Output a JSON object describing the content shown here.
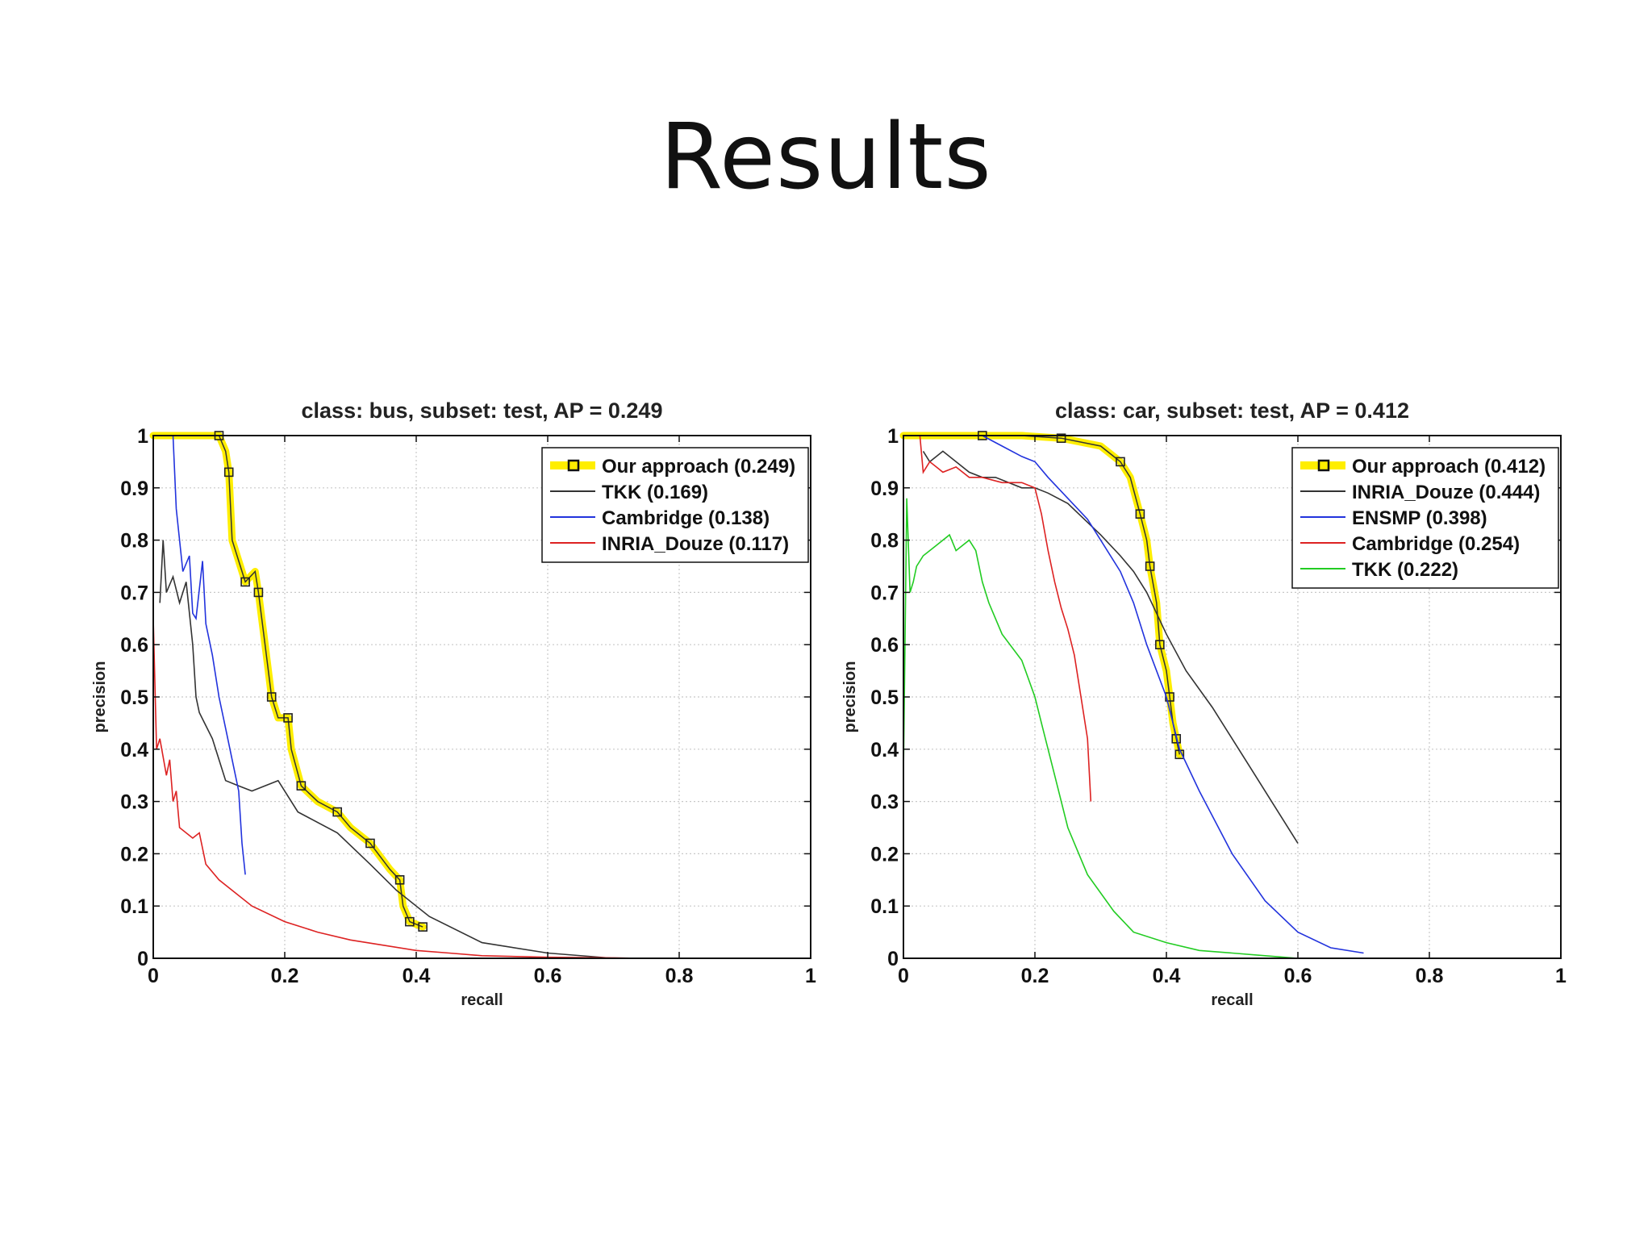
{
  "slide": {
    "title": "Results"
  },
  "chart_data": [
    {
      "type": "line",
      "title": "class: bus, subset: test, AP = 0.249",
      "xlabel": "recall",
      "ylabel": "precision",
      "xlim": [
        0,
        1
      ],
      "ylim": [
        0,
        1
      ],
      "xticks": [
        "0",
        "0.2",
        "0.4",
        "0.6",
        "0.8",
        "1"
      ],
      "yticks": [
        "0",
        "0.1",
        "0.2",
        "0.3",
        "0.4",
        "0.5",
        "0.6",
        "0.7",
        "0.8",
        "0.9",
        "1"
      ],
      "grid": true,
      "legend_position": "top-right",
      "series": [
        {
          "name": "Our approach (0.249)",
          "color": "#ffee00",
          "highlight": true,
          "markers": true,
          "x": [
            0,
            0.06,
            0.1,
            0.11,
            0.115,
            0.12,
            0.14,
            0.155,
            0.16,
            0.17,
            0.18,
            0.19,
            0.205,
            0.21,
            0.225,
            0.25,
            0.28,
            0.3,
            0.33,
            0.36,
            0.375,
            0.38,
            0.39,
            0.41
          ],
          "y": [
            1,
            1,
            1,
            0.97,
            0.93,
            0.8,
            0.72,
            0.74,
            0.7,
            0.6,
            0.5,
            0.46,
            0.46,
            0.4,
            0.33,
            0.3,
            0.28,
            0.25,
            0.22,
            0.17,
            0.15,
            0.1,
            0.07,
            0.06
          ]
        },
        {
          "name": "TKK (0.169)",
          "color": "#333333",
          "x": [
            0.01,
            0.015,
            0.02,
            0.03,
            0.04,
            0.05,
            0.06,
            0.065,
            0.07,
            0.09,
            0.1,
            0.11,
            0.13,
            0.15,
            0.19,
            0.22,
            0.28,
            0.33,
            0.37,
            0.42,
            0.5,
            0.6,
            0.7
          ],
          "y": [
            0.68,
            0.8,
            0.7,
            0.73,
            0.68,
            0.72,
            0.6,
            0.5,
            0.47,
            0.42,
            0.38,
            0.34,
            0.33,
            0.32,
            0.34,
            0.28,
            0.24,
            0.18,
            0.13,
            0.08,
            0.03,
            0.01,
            0
          ]
        },
        {
          "name": "Cambridge (0.138)",
          "color": "#2233dd",
          "x": [
            0.03,
            0.035,
            0.04,
            0.045,
            0.055,
            0.06,
            0.065,
            0.075,
            0.08,
            0.09,
            0.1,
            0.11,
            0.12,
            0.13,
            0.135,
            0.14
          ],
          "y": [
            1,
            0.86,
            0.8,
            0.74,
            0.77,
            0.66,
            0.65,
            0.76,
            0.64,
            0.58,
            0.5,
            0.44,
            0.38,
            0.32,
            0.22,
            0.16
          ]
        },
        {
          "name": "INRIA_Douze (0.117)",
          "color": "#dd2222",
          "x": [
            0,
            0.005,
            0.01,
            0.02,
            0.025,
            0.03,
            0.035,
            0.04,
            0.06,
            0.07,
            0.08,
            0.1,
            0.12,
            0.15,
            0.2,
            0.25,
            0.3,
            0.35,
            0.4,
            0.45,
            0.5,
            0.6,
            0.7,
            0.74
          ],
          "y": [
            0.65,
            0.4,
            0.42,
            0.35,
            0.38,
            0.3,
            0.32,
            0.25,
            0.23,
            0.24,
            0.18,
            0.15,
            0.13,
            0.1,
            0.07,
            0.05,
            0.035,
            0.025,
            0.015,
            0.01,
            0.005,
            0.002,
            0.001,
            0
          ]
        }
      ]
    },
    {
      "type": "line",
      "title": "class: car, subset: test, AP = 0.412",
      "xlabel": "recall",
      "ylabel": "precision",
      "xlim": [
        0,
        1
      ],
      "ylim": [
        0,
        1
      ],
      "xticks": [
        "0",
        "0.2",
        "0.4",
        "0.6",
        "0.8",
        "1"
      ],
      "yticks": [
        "0",
        "0.1",
        "0.2",
        "0.3",
        "0.4",
        "0.5",
        "0.6",
        "0.7",
        "0.8",
        "0.9",
        "1"
      ],
      "grid": true,
      "legend_position": "top-right",
      "series": [
        {
          "name": "Our approach (0.412)",
          "color": "#ffee00",
          "highlight": true,
          "markers": true,
          "x": [
            0,
            0.06,
            0.12,
            0.18,
            0.24,
            0.3,
            0.33,
            0.345,
            0.36,
            0.37,
            0.375,
            0.385,
            0.39,
            0.4,
            0.405,
            0.41,
            0.415,
            0.42
          ],
          "y": [
            1,
            1,
            1,
            1,
            0.995,
            0.98,
            0.95,
            0.92,
            0.85,
            0.8,
            0.75,
            0.68,
            0.6,
            0.55,
            0.5,
            0.45,
            0.42,
            0.39
          ]
        },
        {
          "name": "INRIA_Douze (0.444)",
          "color": "#333333",
          "x": [
            0.03,
            0.04,
            0.05,
            0.06,
            0.08,
            0.1,
            0.12,
            0.14,
            0.16,
            0.18,
            0.2,
            0.22,
            0.25,
            0.3,
            0.33,
            0.35,
            0.37,
            0.4,
            0.43,
            0.47,
            0.5,
            0.53,
            0.56,
            0.6
          ],
          "y": [
            0.97,
            0.95,
            0.96,
            0.97,
            0.95,
            0.93,
            0.92,
            0.92,
            0.91,
            0.9,
            0.9,
            0.89,
            0.87,
            0.81,
            0.77,
            0.74,
            0.7,
            0.62,
            0.55,
            0.48,
            0.42,
            0.36,
            0.3,
            0.22
          ]
        },
        {
          "name": "ENSMP (0.398)",
          "color": "#2233dd",
          "x": [
            0.12,
            0.15,
            0.18,
            0.2,
            0.22,
            0.25,
            0.28,
            0.3,
            0.33,
            0.35,
            0.37,
            0.4,
            0.42,
            0.45,
            0.5,
            0.55,
            0.6,
            0.65,
            0.7
          ],
          "y": [
            1,
            0.98,
            0.96,
            0.95,
            0.92,
            0.88,
            0.84,
            0.8,
            0.74,
            0.68,
            0.6,
            0.5,
            0.4,
            0.32,
            0.2,
            0.11,
            0.05,
            0.02,
            0.01
          ]
        },
        {
          "name": "Cambridge (0.254)",
          "color": "#dd2222",
          "x": [
            0.025,
            0.03,
            0.04,
            0.05,
            0.06,
            0.08,
            0.1,
            0.12,
            0.15,
            0.18,
            0.2,
            0.21,
            0.22,
            0.23,
            0.24,
            0.25,
            0.26,
            0.27,
            0.28,
            0.285
          ],
          "y": [
            1,
            0.93,
            0.95,
            0.94,
            0.93,
            0.94,
            0.92,
            0.92,
            0.91,
            0.91,
            0.9,
            0.85,
            0.78,
            0.72,
            0.67,
            0.63,
            0.58,
            0.5,
            0.42,
            0.3
          ]
        },
        {
          "name": "TKK (0.222)",
          "color": "#22cc22",
          "x": [
            0,
            0.005,
            0.01,
            0.015,
            0.02,
            0.03,
            0.05,
            0.07,
            0.08,
            0.1,
            0.11,
            0.12,
            0.13,
            0.15,
            0.18,
            0.2,
            0.21,
            0.23,
            0.25,
            0.28,
            0.32,
            0.35,
            0.4,
            0.45,
            0.5,
            0.55,
            0.6
          ],
          "y": [
            0.35,
            0.88,
            0.7,
            0.72,
            0.75,
            0.77,
            0.79,
            0.81,
            0.78,
            0.8,
            0.78,
            0.72,
            0.68,
            0.62,
            0.57,
            0.5,
            0.45,
            0.35,
            0.25,
            0.16,
            0.09,
            0.05,
            0.03,
            0.015,
            0.01,
            0.005,
            0
          ]
        }
      ]
    }
  ]
}
